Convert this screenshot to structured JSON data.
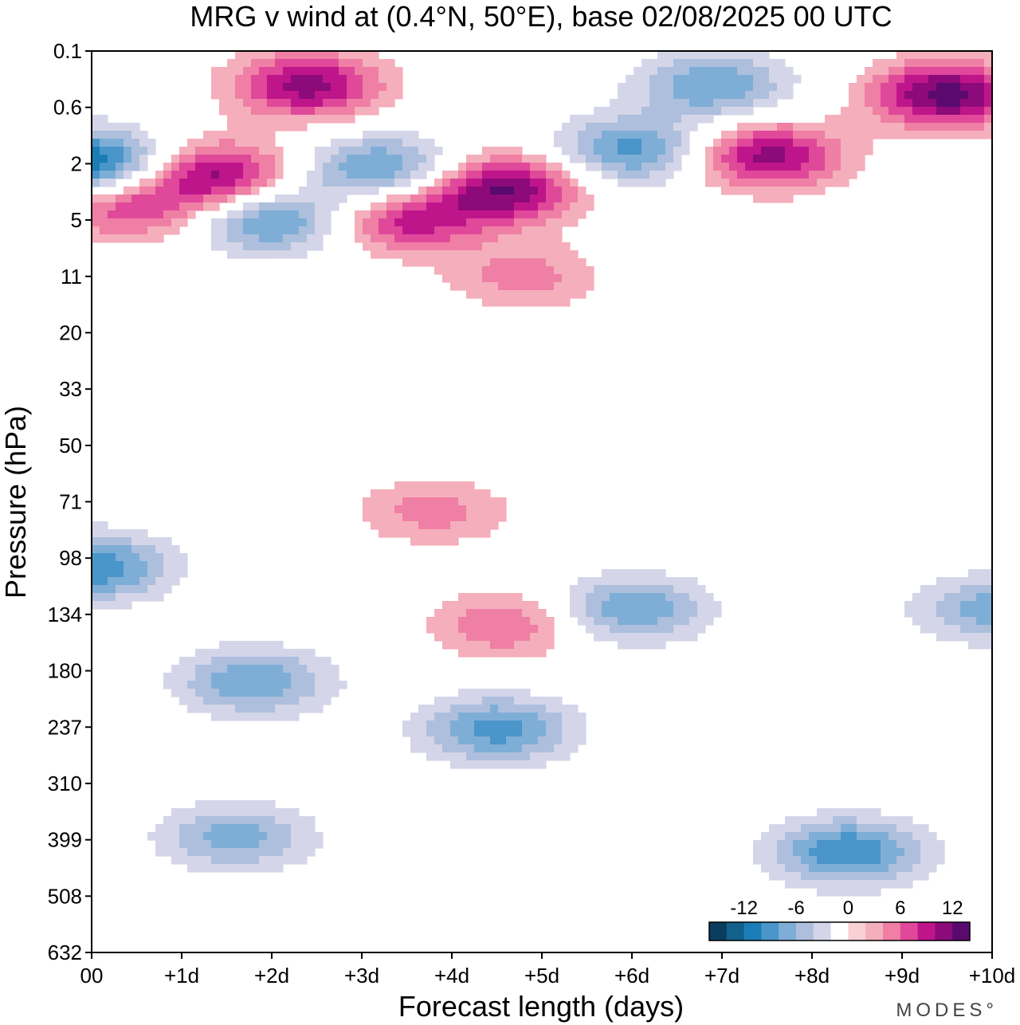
{
  "chart_data": {
    "type": "heatmap",
    "title": "MRG v wind at (0.4°N, 50°E),  base 02/08/2025  00 UTC",
    "xlabel": "Forecast length (days)",
    "ylabel": "Pressure (hPa)",
    "x_ticks": [
      "00",
      "+1d",
      "+2d",
      "+3d",
      "+4d",
      "+5d",
      "+6d",
      "+7d",
      "+8d",
      "+9d",
      "+10d"
    ],
    "xlim_days": [
      0,
      10
    ],
    "y_ticks": [
      "0.1",
      "0.6",
      "2",
      "5",
      "11",
      "20",
      "33",
      "50",
      "71",
      "98",
      "134",
      "180",
      "237",
      "310",
      "399",
      "508",
      "632"
    ],
    "y_scale": "log-pressure, top to bottom",
    "colorbar": {
      "levels": [
        -14,
        -12,
        -10,
        -8,
        -6,
        -4,
        -2,
        0,
        2,
        4,
        6,
        8,
        10,
        12,
        14
      ],
      "tick_labels": [
        "-12",
        "-6",
        "0",
        "6",
        "12"
      ],
      "tick_values": [
        -12,
        -6,
        0,
        6,
        12
      ],
      "colors": [
        "#0b3d5e",
        "#12608c",
        "#1b7db5",
        "#4a95c9",
        "#7eaed6",
        "#adbfdd",
        "#d4d5e8",
        "#ffffff",
        "#f9d0d4",
        "#f5aebb",
        "#ef7fa4",
        "#e0489a",
        "#bf158a",
        "#8c0a7a",
        "#5a0a6e"
      ]
    },
    "features": [
      {
        "day": 0.0,
        "p": 2,
        "v": -13
      },
      {
        "day": 0.4,
        "p": 4,
        "v": 8
      },
      {
        "day": 1.4,
        "p": 2.4,
        "v": 11
      },
      {
        "day": 2.4,
        "p": 0.3,
        "v": 11
      },
      {
        "day": 2.0,
        "p": 5,
        "v": -9
      },
      {
        "day": 3.2,
        "p": 2.2,
        "v": -9
      },
      {
        "day": 3.5,
        "p": 5,
        "v": 9
      },
      {
        "day": 4.6,
        "p": 3,
        "v": 12
      },
      {
        "day": 6.0,
        "p": 1.5,
        "v": -9
      },
      {
        "day": 6.9,
        "p": 0.3,
        "v": -8
      },
      {
        "day": 7.5,
        "p": 1.7,
        "v": 11
      },
      {
        "day": 9.5,
        "p": 0.4,
        "v": 13
      },
      {
        "day": 4.8,
        "p": 11,
        "v": 5
      },
      {
        "day": 3.8,
        "p": 75,
        "v": 5
      },
      {
        "day": 0.0,
        "p": 103,
        "v": -10
      },
      {
        "day": 4.6,
        "p": 142,
        "v": 6
      },
      {
        "day": 6.0,
        "p": 130,
        "v": -8
      },
      {
        "day": 1.8,
        "p": 190,
        "v": -8
      },
      {
        "day": 4.5,
        "p": 240,
        "v": -9
      },
      {
        "day": 1.6,
        "p": 395,
        "v": -7
      },
      {
        "day": 8.4,
        "p": 420,
        "v": -10
      },
      {
        "day": 10.0,
        "p": 130,
        "v": -7
      }
    ]
  },
  "branding": "MODES°"
}
